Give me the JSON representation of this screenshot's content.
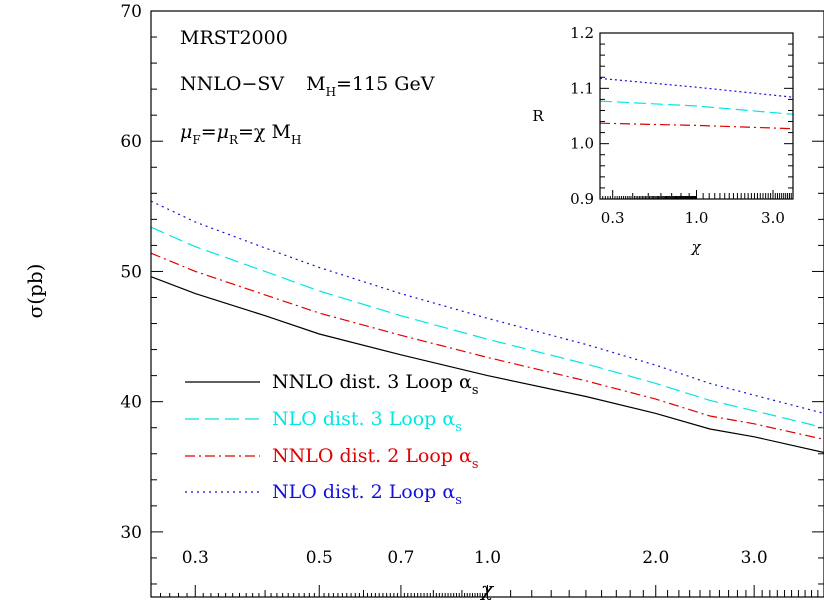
{
  "chart_data": {
    "type": "line",
    "xlabel": "χ",
    "ylabel": "σ(pb)",
    "xscale": "log",
    "xlim": [
      0.25,
      4.0
    ],
    "ylim": [
      25,
      70
    ],
    "xticks": [
      {
        "value": 0.3,
        "label": "0.3"
      },
      {
        "value": 0.5,
        "label": "0.5"
      },
      {
        "value": 0.7,
        "label": "0.7"
      },
      {
        "value": 1.0,
        "label": "1.0"
      },
      {
        "value": 2.0,
        "label": "2.0"
      },
      {
        "value": 3.0,
        "label": "3.0"
      }
    ],
    "yticks": [
      30,
      40,
      50,
      60,
      70
    ],
    "annotations": {
      "line1": "MRST2000",
      "line2a": "NNLO−SV",
      "line2b": "M",
      "line2b_sub": "H",
      "line2c": "=115 GeV",
      "line3_mu": "μ",
      "line3_sub_f": "F",
      "line3_eq": "=",
      "line3_mu2": "μ",
      "line3_sub_r": "R",
      "line3_rest": "=χ M",
      "line3_sub_h": "H"
    },
    "series": [
      {
        "name": "NNLO dist. 3 Loop αs",
        "label_main": "NNLO dist. 3 Loop α",
        "label_sub": "s",
        "color": "#000000",
        "dash": "",
        "x": [
          0.25,
          0.3,
          0.4,
          0.5,
          0.7,
          1.0,
          1.5,
          2.0,
          2.5,
          3.0,
          4.0
        ],
        "y": [
          49.6,
          48.3,
          46.6,
          45.2,
          43.6,
          42.0,
          40.4,
          39.1,
          37.9,
          37.3,
          36.1
        ]
      },
      {
        "name": "NLO dist. 3 Loop αs",
        "label_main": "NLO dist. 3 Loop α",
        "label_sub": "s",
        "color": "#00e5e5",
        "dash": "14,6",
        "x": [
          0.25,
          0.3,
          0.4,
          0.5,
          0.7,
          1.0,
          1.5,
          2.0,
          2.5,
          3.0,
          4.0
        ],
        "y": [
          53.4,
          51.9,
          50.0,
          48.5,
          46.6,
          44.8,
          42.9,
          41.4,
          40.1,
          39.3,
          38.0
        ]
      },
      {
        "name": "NNLO dist. 2 Loop αs",
        "label_main": "NNLO dist. 2 Loop α",
        "label_sub": "s",
        "color": "#e00000",
        "dash": "10,4,2,4",
        "x": [
          0.25,
          0.3,
          0.4,
          0.5,
          0.7,
          1.0,
          1.5,
          2.0,
          2.5,
          3.0,
          4.0
        ],
        "y": [
          51.4,
          50.0,
          48.2,
          46.8,
          45.1,
          43.4,
          41.6,
          40.2,
          38.9,
          38.3,
          37.1
        ]
      },
      {
        "name": "NLO dist. 2 Loop αs",
        "label_main": "NLO dist. 2 Loop α",
        "label_sub": "s",
        "color": "#1010e0",
        "dash": "2,4",
        "x": [
          0.25,
          0.3,
          0.4,
          0.5,
          0.7,
          1.0,
          1.5,
          2.0,
          2.5,
          3.0,
          4.0
        ],
        "y": [
          55.4,
          53.8,
          51.8,
          50.3,
          48.3,
          46.4,
          44.4,
          42.8,
          41.4,
          40.5,
          39.1
        ]
      }
    ],
    "inset": {
      "ylabel": "R",
      "xlabel": "χ",
      "xlim": [
        0.25,
        4.0
      ],
      "ylim": [
        0.9,
        1.2
      ],
      "yticks": [
        {
          "value": 0.9,
          "label": "0.9"
        },
        {
          "value": 1.0,
          "label": "1.0"
        },
        {
          "value": 1.1,
          "label": "1.1"
        },
        {
          "value": 1.2,
          "label": "1.2"
        }
      ],
      "xticks": [
        {
          "value": 0.3,
          "label": "0.3"
        },
        {
          "value": 1.0,
          "label": "1.0"
        },
        {
          "value": 3.0,
          "label": "3.0"
        }
      ],
      "series": [
        {
          "color": "#1010e0",
          "dash": "2,3",
          "x": [
            0.25,
            1.0,
            4.0
          ],
          "y": [
            1.118,
            1.102,
            1.084
          ]
        },
        {
          "color": "#00e5e5",
          "dash": "12,5",
          "x": [
            0.25,
            1.0,
            4.0
          ],
          "y": [
            1.077,
            1.068,
            1.053
          ]
        },
        {
          "color": "#e00000",
          "dash": "10,4,2,4",
          "x": [
            0.25,
            1.0,
            4.0
          ],
          "y": [
            1.037,
            1.033,
            1.027
          ]
        }
      ]
    }
  }
}
